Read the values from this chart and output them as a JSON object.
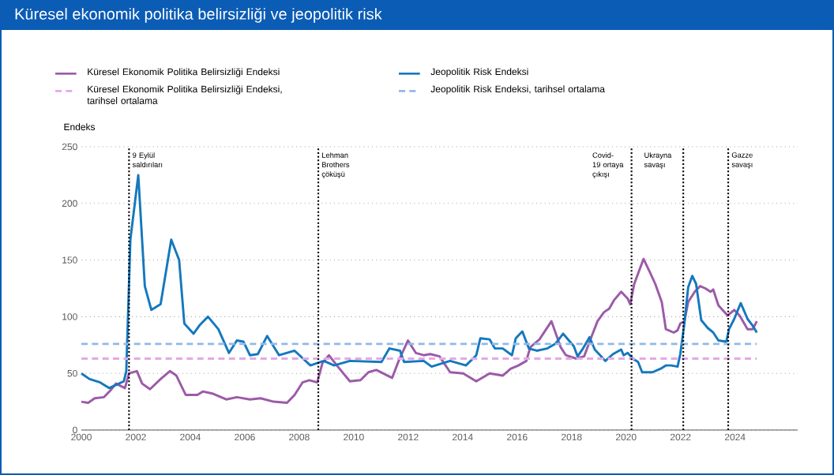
{
  "chart_data": {
    "type": "line",
    "title": "Küresel ekonomik politika belirsizliği ve jeopolitik risk",
    "ylabel": "Endeks",
    "xlim": [
      2000,
      2026.3
    ],
    "xticks": [
      2000,
      2002,
      2004,
      2006,
      2008,
      2010,
      2012,
      2014,
      2016,
      2018,
      2020,
      2022,
      2024
    ],
    "ylim": [
      0,
      250
    ],
    "yticks": [
      0,
      50,
      100,
      150,
      200,
      250
    ],
    "grid": "y",
    "legend": "top",
    "series": [
      {
        "name": "Küresel Ekonomik Politika Belirsizliği Endeksi",
        "color": "#9c5aa8",
        "line_style": "solid",
        "x": [
          2000.0,
          2000.25,
          2000.49,
          2000.83,
          2001.07,
          2001.27,
          2001.6,
          2001.75,
          2002.04,
          2002.23,
          2002.52,
          2002.91,
          2003.25,
          2003.49,
          2003.83,
          2004.26,
          2004.46,
          2004.84,
          2005.32,
          2005.71,
          2006.19,
          2006.58,
          2007.06,
          2007.55,
          2007.83,
          2008.12,
          2008.37,
          2008.66,
          2008.85,
          2009.09,
          2009.38,
          2009.86,
          2010.25,
          2010.54,
          2010.83,
          2011.41,
          2011.65,
          2011.99,
          2012.28,
          2012.57,
          2012.81,
          2013.15,
          2013.54,
          2014.02,
          2014.5,
          2014.99,
          2015.47,
          2015.76,
          2016.05,
          2016.34,
          2016.48,
          2016.82,
          2017.26,
          2017.6,
          2017.79,
          2018.17,
          2018.46,
          2018.66,
          2018.95,
          2019.19,
          2019.38,
          2019.57,
          2019.82,
          2020.06,
          2020.15,
          2020.3,
          2020.44,
          2020.64,
          2020.88,
          2021.07,
          2021.31,
          2021.46,
          2021.75,
          2021.89,
          2021.99,
          2022.14,
          2022.28,
          2022.52,
          2022.72,
          2022.91,
          2023.1,
          2023.2,
          2023.39,
          2023.73,
          2023.97,
          2024.17,
          2024.46,
          2024.65,
          2024.8
        ],
        "values": [
          25,
          24,
          28,
          29,
          35,
          41,
          37,
          50,
          52,
          41,
          36,
          45,
          52,
          48,
          31,
          31,
          34,
          32,
          27,
          29,
          27,
          28,
          25,
          24,
          31,
          42,
          44,
          42,
          59,
          66,
          57,
          43,
          44,
          51,
          53,
          46,
          61,
          79,
          68,
          66,
          67,
          65,
          51,
          50,
          43,
          50,
          48,
          54,
          57,
          61,
          73,
          80,
          96,
          73,
          66,
          63,
          65,
          78,
          96,
          104,
          107,
          115,
          122,
          116,
          111,
          129,
          138,
          151,
          139,
          129,
          113,
          89,
          86,
          88,
          94,
          96,
          113,
          122,
          127,
          125,
          122,
          124,
          110,
          101,
          106,
          101,
          89,
          89,
          96
        ]
      },
      {
        "name": "Jeopolitik Risk Endeksi",
        "color": "#1578be",
        "line_style": "solid",
        "x": [
          2000.0,
          2000.3,
          2000.69,
          2001.02,
          2001.56,
          2001.65,
          2001.8,
          2002.09,
          2002.33,
          2002.57,
          2002.91,
          2003.3,
          2003.59,
          2003.78,
          2004.12,
          2004.36,
          2004.65,
          2005.03,
          2005.42,
          2005.71,
          2005.95,
          2006.19,
          2006.48,
          2006.82,
          2007.26,
          2007.83,
          2008.41,
          2008.9,
          2009.28,
          2009.86,
          2011.02,
          2011.31,
          2011.7,
          2011.85,
          2012.57,
          2012.86,
          2013.54,
          2014.12,
          2014.5,
          2014.65,
          2014.99,
          2015.18,
          2015.47,
          2015.81,
          2015.95,
          2016.19,
          2016.43,
          2016.72,
          2017.11,
          2017.4,
          2017.69,
          2018.08,
          2018.22,
          2018.42,
          2018.66,
          2018.85,
          2019.24,
          2019.52,
          2019.82,
          2019.91,
          2020.06,
          2020.25,
          2020.44,
          2020.59,
          2020.97,
          2021.26,
          2021.46,
          2021.65,
          2021.89,
          2021.99,
          2022.14,
          2022.28,
          2022.43,
          2022.57,
          2022.76,
          2023.0,
          2023.2,
          2023.39,
          2023.68,
          2023.78,
          2023.97,
          2024.21,
          2024.46,
          2024.65,
          2024.8
        ],
        "values": [
          50,
          45,
          42,
          37,
          43,
          52,
          168,
          225,
          127,
          106,
          111,
          168,
          150,
          94,
          85,
          93,
          100,
          89,
          68,
          79,
          78,
          66,
          67,
          83,
          66,
          70,
          57,
          61,
          57,
          61,
          60,
          72,
          70,
          60,
          61,
          56,
          61,
          57,
          66,
          81,
          80,
          72,
          72,
          66,
          81,
          87,
          72,
          70,
          72,
          76,
          85,
          74,
          65,
          72,
          82,
          71,
          61,
          67,
          71,
          66,
          68,
          63,
          60,
          51,
          51,
          54,
          57,
          57,
          56,
          67,
          94,
          126,
          136,
          129,
          97,
          90,
          86,
          79,
          78,
          89,
          98,
          112,
          98,
          92,
          86
        ]
      },
      {
        "name": "Küresel Ekonomik Politika Belirsizliği Endeksi, tarihsel ortalama",
        "color": "#e3a9e6",
        "line_style": "dashed",
        "x": [
          2000,
          2024.8
        ],
        "values": [
          63,
          63
        ]
      },
      {
        "name": "Jeopolitik Risk Endeksi, tarihsel ortalama",
        "color": "#91b9e8",
        "line_style": "dashed",
        "x": [
          2000,
          2024.8
        ],
        "values": [
          76,
          76
        ]
      }
    ],
    "ref_lines": [
      {
        "axis": "x",
        "value": 2001.75,
        "label": "9 Eylül saldırıları",
        "line_style": "dotted"
      },
      {
        "axis": "x",
        "value": 2008.7,
        "label": "Lehman Brothers çöküşü",
        "line_style": "dotted"
      },
      {
        "axis": "x",
        "value": 2020.2,
        "label": "Covid-19 ortaya çıkışı",
        "line_style": "dotted"
      },
      {
        "axis": "x",
        "value": 2022.1,
        "label": "Ukrayna savaşı",
        "line_style": "dotted"
      },
      {
        "axis": "x",
        "value": 2023.75,
        "label": "Gazze savaşı",
        "line_style": "dotted"
      }
    ]
  }
}
